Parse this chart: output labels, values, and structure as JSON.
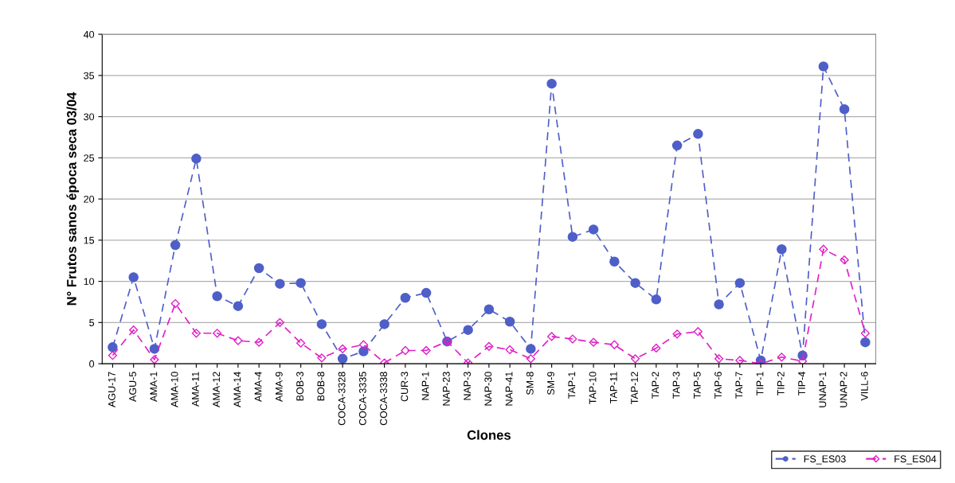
{
  "chart_data": {
    "type": "line",
    "xlabel": "Clones",
    "ylabel": "N° Frutos sanos época seca 03/04",
    "categories": [
      "AGU-17",
      "AGU-5",
      "AMA-1",
      "AMA-10",
      "AMA-11",
      "AMA-12",
      "AMA-14",
      "AMA-4",
      "AMA-9",
      "BOB-3",
      "BOB-8",
      "COCA-3328",
      "COCA-3335",
      "COCA-3338",
      "CUR-3",
      "NAP-1",
      "NAP-23",
      "NAP-3",
      "NAP-30",
      "NAP-41",
      "SM-8",
      "SM-9",
      "TAP-1",
      "TAP-10",
      "TAP-11",
      "TAP-12",
      "TAP-2",
      "TAP-3",
      "TAP-5",
      "TAP-6",
      "TAP-7",
      "TIP-1",
      "TIP-2",
      "TIP-4",
      "UNAP-1",
      "UNAP-2",
      "VILL-6"
    ],
    "series": [
      {
        "name": "FS_ES03",
        "color": "#4f5fc8",
        "marker": "circle",
        "values": [
          2,
          10.5,
          1.8,
          14.4,
          24.9,
          8.2,
          7,
          11.6,
          9.7,
          9.8,
          4.8,
          0.6,
          1.5,
          4.8,
          8,
          8.6,
          2.7,
          4.1,
          6.6,
          5.1,
          1.8,
          34,
          15.4,
          16.3,
          12.4,
          9.8,
          7.8,
          26.5,
          27.9,
          7.2,
          9.8,
          0.4,
          13.9,
          1,
          36.1,
          30.9,
          2.6
        ]
      },
      {
        "name": "FS_ES04",
        "color": "#e020c8",
        "marker": "diamond",
        "values": [
          1,
          4.1,
          0.5,
          7.3,
          3.7,
          3.7,
          2.8,
          2.6,
          5,
          2.5,
          0.7,
          1.8,
          2.3,
          0.1,
          1.6,
          1.6,
          2.7,
          0.1,
          2.1,
          1.7,
          0.6,
          3.3,
          3,
          2.6,
          2.3,
          0.6,
          1.9,
          3.6,
          3.9,
          0.6,
          0.4,
          0,
          0.8,
          0.3,
          13.9,
          12.6,
          3.7
        ]
      }
    ],
    "ylim": [
      0,
      40
    ],
    "yticks": [
      0,
      5,
      10,
      15,
      20,
      25,
      30,
      35,
      40
    ],
    "grid": "y",
    "legend": "bottom right",
    "line_style": "dashed"
  }
}
